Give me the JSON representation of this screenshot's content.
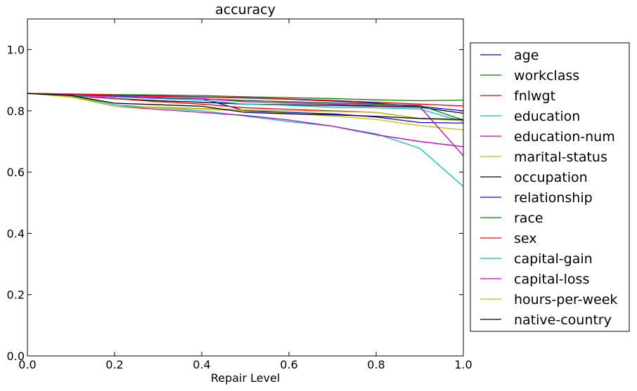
{
  "chart_data": {
    "type": "line",
    "title": "accuracy",
    "xlabel": "Repair Level",
    "ylabel": "",
    "xlim": [
      0.0,
      1.0
    ],
    "ylim": [
      0.0,
      1.1
    ],
    "x_ticks": [
      0.0,
      0.2,
      0.4,
      0.6,
      0.8,
      1.0
    ],
    "x_tick_labels": [
      "0.0",
      "0.2",
      "0.4",
      "0.6",
      "0.8",
      "1.0"
    ],
    "y_ticks": [
      0.0,
      0.2,
      0.4,
      0.6,
      0.8,
      1.0
    ],
    "y_tick_labels": [
      "0.0",
      "0.2",
      "0.4",
      "0.6",
      "0.8",
      "1.0"
    ],
    "grid": false,
    "legend_position": "right-outside",
    "x": [
      0.0,
      0.1,
      0.2,
      0.3,
      0.4,
      0.5,
      0.6,
      0.7,
      0.8,
      0.9,
      1.0
    ],
    "series": [
      {
        "name": "age",
        "color": "#0000ff",
        "values": [
          0.857,
          0.853,
          0.851,
          0.848,
          0.845,
          0.842,
          0.838,
          0.832,
          0.825,
          0.815,
          0.8
        ]
      },
      {
        "name": "workclass",
        "color": "#008000",
        "values": [
          0.857,
          0.855,
          0.853,
          0.852,
          0.85,
          0.846,
          0.843,
          0.84,
          0.836,
          0.833,
          0.835
        ]
      },
      {
        "name": "fnlwgt",
        "color": "#ff0000",
        "values": [
          0.857,
          0.855,
          0.852,
          0.849,
          0.846,
          0.843,
          0.839,
          0.834,
          0.828,
          0.822,
          0.816
        ]
      },
      {
        "name": "education",
        "color": "#00bfbf",
        "values": [
          0.857,
          0.85,
          0.82,
          0.81,
          0.8,
          0.783,
          0.765,
          0.75,
          0.725,
          0.678,
          0.553
        ]
      },
      {
        "name": "education-num",
        "color": "#bf00bf",
        "values": [
          0.857,
          0.848,
          0.815,
          0.805,
          0.795,
          0.785,
          0.77,
          0.75,
          0.722,
          0.7,
          0.683
        ]
      },
      {
        "name": "marital-status",
        "color": "#bfbf00",
        "values": [
          0.857,
          0.845,
          0.815,
          0.81,
          0.806,
          0.8,
          0.792,
          0.783,
          0.772,
          0.752,
          0.738
        ]
      },
      {
        "name": "occupation",
        "color": "#000000",
        "values": [
          0.857,
          0.85,
          0.84,
          0.833,
          0.828,
          0.822,
          0.82,
          0.818,
          0.815,
          0.812,
          0.792
        ]
      },
      {
        "name": "relationship",
        "color": "#0000ff",
        "values": [
          0.857,
          0.85,
          0.845,
          0.842,
          0.84,
          0.8,
          0.795,
          0.79,
          0.78,
          0.762,
          0.76
        ]
      },
      {
        "name": "race",
        "color": "#008000",
        "values": [
          0.857,
          0.852,
          0.848,
          0.843,
          0.839,
          0.834,
          0.83,
          0.826,
          0.822,
          0.818,
          0.77
        ]
      },
      {
        "name": "sex",
        "color": "#ff0000",
        "values": [
          0.857,
          0.85,
          0.84,
          0.83,
          0.822,
          0.81,
          0.805,
          0.8,
          0.795,
          0.775,
          0.77
        ]
      },
      {
        "name": "capital-gain",
        "color": "#00bfbf",
        "values": [
          0.857,
          0.85,
          0.845,
          0.84,
          0.835,
          0.822,
          0.818,
          0.812,
          0.81,
          0.806,
          0.765
        ]
      },
      {
        "name": "capital-loss",
        "color": "#bf00bf",
        "values": [
          0.857,
          0.852,
          0.848,
          0.844,
          0.84,
          0.83,
          0.826,
          0.822,
          0.818,
          0.814,
          0.653
        ]
      },
      {
        "name": "hours-per-week",
        "color": "#bfbf00",
        "values": [
          0.857,
          0.848,
          0.815,
          0.812,
          0.808,
          0.803,
          0.8,
          0.798,
          0.795,
          0.775,
          0.768
        ]
      },
      {
        "name": "native-country",
        "color": "#000000",
        "values": [
          0.857,
          0.85,
          0.825,
          0.82,
          0.815,
          0.795,
          0.79,
          0.787,
          0.782,
          0.775,
          0.772
        ]
      }
    ]
  }
}
